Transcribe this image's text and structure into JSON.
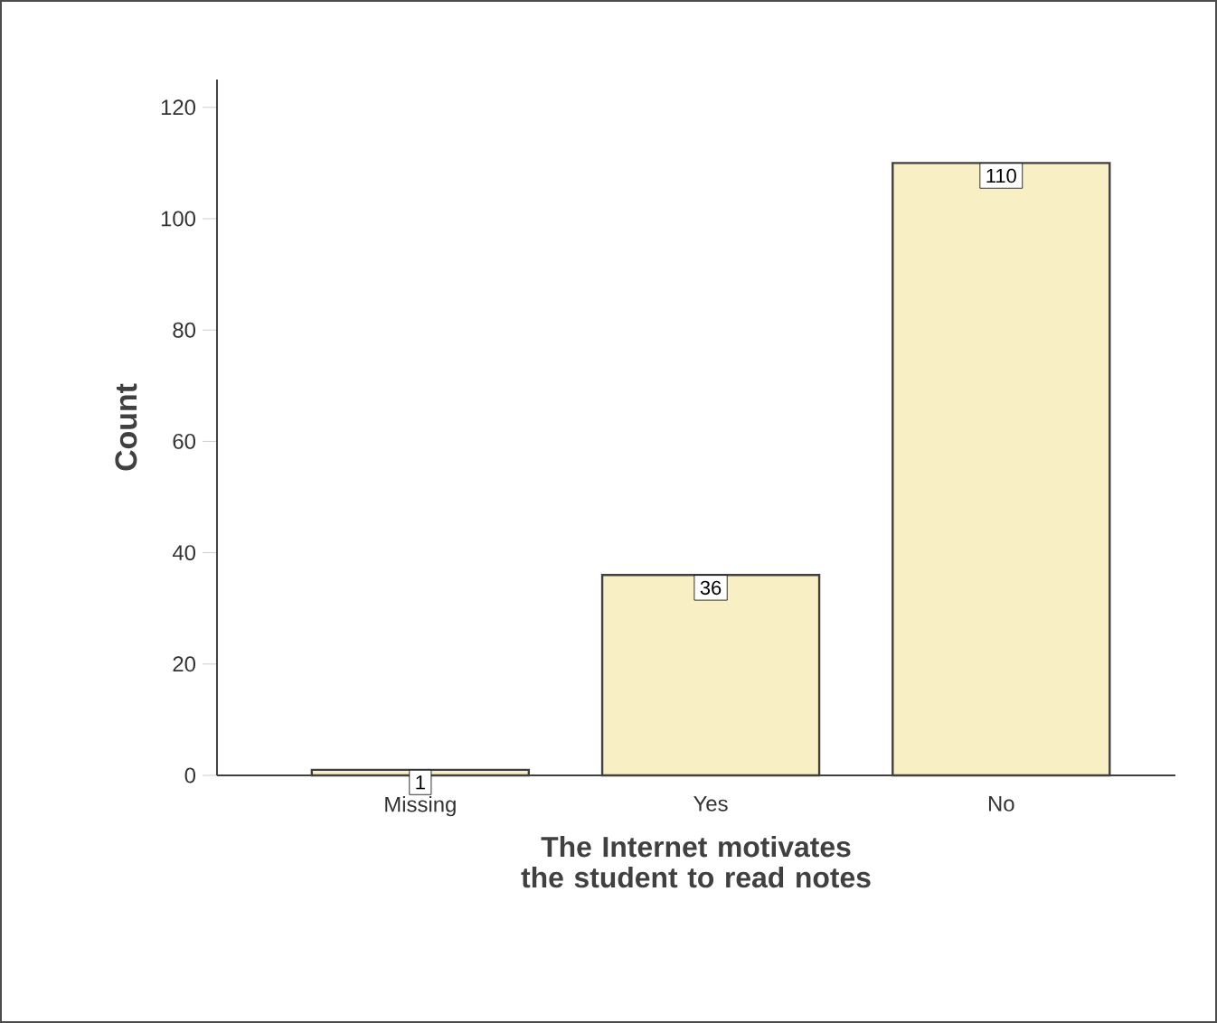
{
  "chart_data": {
    "type": "bar",
    "xlabel": "The Internet motivates the student to read notes",
    "ylabel": "Count",
    "categories": [
      "Missing",
      "Yes",
      "No"
    ],
    "values": [
      1,
      36,
      110
    ],
    "color": "#f8f0c4",
    "ylim": [
      0,
      125
    ],
    "yticks": [
      0,
      20,
      40,
      60,
      80,
      100,
      120
    ],
    "data_labels": true
  }
}
